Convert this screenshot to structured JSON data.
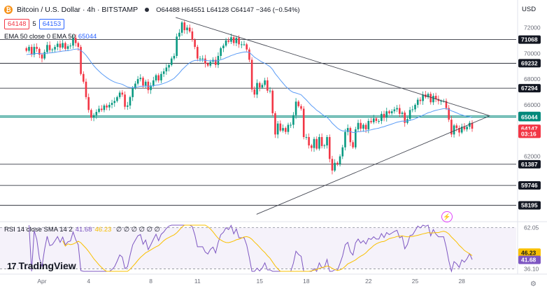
{
  "header": {
    "coin_glyph": "₿",
    "symbol_title": "Bitcoin / U.S. Dollar · 4h · BITSTAMP",
    "ohlc": "O64488 H64551 L64128 C64147 −346 (−0.54%)",
    "bid_price": "64148",
    "spread": "5",
    "ask_price": "64153",
    "currency": "USD"
  },
  "indicators": {
    "ema_label": "EMA 50 close 0 EMA 50",
    "ema_value": "65044",
    "rsi_label": "RSI 14 close SMA 14 2",
    "rsi_value": "41.68",
    "sma_value": "46.23",
    "rsi_extra": "∅ ∅ ∅ ∅ ∅ ∅"
  },
  "branding": {
    "logo_mark": "17",
    "logo_text": "TradingView"
  },
  "icons": {
    "coin": "bitcoin-icon",
    "flash": "lightning-icon",
    "settings": "gear-icon"
  },
  "colors": {
    "up": "#089981",
    "down": "#f23645",
    "ema": "#5b9cf6",
    "rsi": "#7e57c2",
    "rsi_sma": "#f9c000",
    "level": "#131722",
    "ema_tag": "#00897b",
    "price_tag": "#f23645"
  },
  "chart_data": [
    {
      "type": "candlestick",
      "title": "Bitcoin / U.S. Dollar · 4h · BITSTAMP",
      "ylim": [
        57200,
        73600
      ],
      "y_ticks": [
        62000,
        64000,
        66000,
        68000,
        70000,
        72000
      ],
      "x_tick_labels": [
        "Apr",
        "4",
        "8",
        "11",
        "15",
        "18",
        "22",
        "25",
        "28"
      ],
      "x_tick_days": [
        1,
        4,
        8,
        11,
        15,
        18,
        22,
        25,
        28
      ],
      "x_range_days": [
        -1.7,
        31.5
      ],
      "candle_closes": [
        70200,
        70500,
        69900,
        70500,
        70350,
        69900,
        69600,
        70100,
        70650,
        70250,
        70300,
        70500,
        70750,
        70450,
        70800,
        70350,
        70550,
        70600,
        71200,
        70800,
        70500,
        68400,
        67800,
        66600,
        65600,
        65000,
        65200,
        65450,
        65700,
        65600,
        65950,
        65800,
        66000,
        66150,
        66300,
        66600,
        66950,
        66800,
        65850,
        65950,
        66600,
        67300,
        67650,
        68000,
        68100,
        67500,
        67800,
        67150,
        67500,
        67900,
        68300,
        67900,
        68400,
        68600,
        68900,
        69100,
        69600,
        69800,
        71300,
        71600,
        72400,
        71800,
        72000,
        71700,
        71050,
        70500,
        69600,
        69600,
        69600,
        69200,
        69050,
        69350,
        69500,
        69100,
        69800,
        70400,
        70600,
        71000,
        70900,
        71250,
        70800,
        71200,
        70700,
        70700,
        70700,
        70300,
        69500,
        67200,
        66800,
        67700,
        67350,
        67550,
        67900,
        67100,
        67100,
        65350,
        63700,
        64550,
        64000,
        64200,
        63900,
        64450,
        64450,
        65200,
        66250,
        65900,
        65700,
        63500,
        63500,
        62850,
        62650,
        63350,
        62600,
        63500,
        62800,
        62850,
        63500,
        61800,
        60900,
        61500,
        61400,
        62000,
        62700,
        63900,
        64200,
        63100,
        62700,
        64100,
        64600,
        64150,
        64450,
        64100,
        64750,
        64650,
        64950,
        64750,
        64750,
        65300,
        65000,
        65500,
        65350,
        65500,
        65650,
        65750,
        65300,
        65400,
        64600,
        64900,
        65600,
        65650,
        66000,
        66400,
        66300,
        66800,
        66600,
        66850,
        66200,
        66700,
        66450,
        66300,
        66300,
        66300,
        65750,
        64850,
        63700,
        64400,
        64200,
        63850,
        64300,
        64100,
        64300,
        64600,
        64150
      ],
      "candle_start_day": 0,
      "candle_interval_hours": 4,
      "horizontal_levels": [
        71068,
        69232,
        67294,
        65143,
        65044,
        61387,
        59746,
        58195
      ],
      "right_axis_labels": [
        {
          "text": "71068",
          "value": 71068,
          "style": "level"
        },
        {
          "text": "69232",
          "value": 69232,
          "style": "level"
        },
        {
          "text": "67294",
          "value": 67294,
          "style": "level"
        },
        {
          "text": "65143",
          "value": 65143,
          "style": "ema"
        },
        {
          "text": "65044",
          "value": 65044,
          "style": "ema"
        },
        {
          "text": "64147",
          "value": 64147,
          "style": "price"
        },
        {
          "text": "03:16",
          "value": 63750,
          "style": "price"
        },
        {
          "text": "61387",
          "value": 61387,
          "style": "level"
        },
        {
          "text": "59746",
          "value": 59746,
          "style": "level"
        },
        {
          "text": "58195",
          "value": 58195,
          "style": "level"
        }
      ],
      "trendlines": [
        {
          "from": [
            9.6,
            72790
          ],
          "to": [
            29.8,
            65150
          ]
        },
        {
          "from": [
            14.8,
            57500
          ],
          "to": [
            29.8,
            65150
          ]
        }
      ],
      "ema_close": 65044
    },
    {
      "type": "line",
      "title": "RSI 14 close SMA 14 2",
      "series": [
        {
          "name": "RSI",
          "values": []
        },
        {
          "name": "SMA",
          "values": []
        }
      ],
      "ylim": [
        34.5,
        63.5
      ],
      "y_ticks": [
        62.05,
        36.1
      ],
      "band": [
        36.1,
        62.05
      ],
      "last_rsi": 41.68,
      "last_sma": 46.23
    }
  ]
}
